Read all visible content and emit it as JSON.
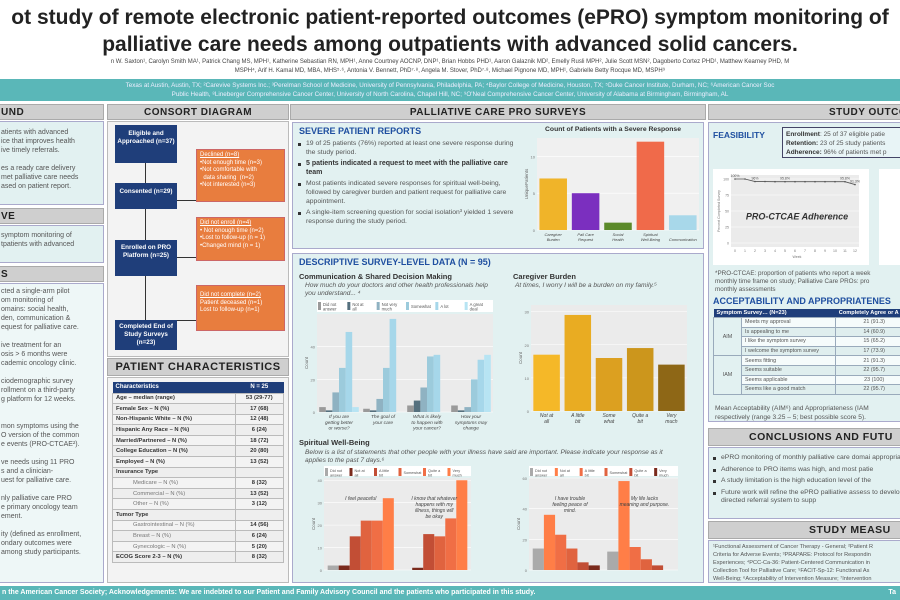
{
  "title": [
    "ot study of remote electronic patient-reported outcomes (ePRO) symptom monitoring of",
    "palliative care needs among outpatients with advanced solid cancers."
  ],
  "authors": [
    "n W. Saxton¹, Carolyn Smith MA¹, Patrick Chang MS, MPH¹, Katherine Sebastian RN, MPH¹, Anne Courtney AOCNP, DNP¹, Brian Hobbs PHD¹, Aaron Galaznik MD², Emelly Rusli MPH², Julie Scott MSN², Dagoberto Cortez PHD¹, Matthew Kearney PHD, M",
    "MSPH⁴, Arif H. Kamal MD, MBA, MHS⁵·⁶, Antonia V. Bennett, PhD⁷·⁸, Angela M. Stover, PhD⁷·⁸, Michael Pignone MD, MPH¹, Gabrielle Betty Rocque MD, MSPH⁹"
  ],
  "affiliations": [
    "Texas at Austin, Austin, TX; ²Carevive Systems Inc.; ³Perelman School of Medicine, University of Pennsylvania, Philadelphia, PA; ⁴Baylor College of Medicine, Houston, TX; ⁵Duke Cancer Institute, Durham, NC; ⁶American Cancer Soc",
    "Public Health, ⁸Lineberger Comprehensive Cancer Center, University of North Carolina, Chapel Hill, NC; ⁹O'Neal Comprehensive Cancer Center, University of Alabama at Birmingham, Birmingham, AL"
  ],
  "left": {
    "background_header": "UND",
    "background_lines": [
      "atients with advanced",
      "ice that improves health",
      "ive timely referrals.",
      "",
      "es a ready care delivery",
      "met palliative care needs",
      "ased on patient report."
    ],
    "objective_header": "VE",
    "objective_lines": [
      "symptom monitoring of",
      "tpatients with advanced"
    ],
    "methods_header": "S",
    "methods_lines": [
      "cted a single-arm pilot",
      "om monitoring of",
      "omains: social health,",
      "den, communication &",
      "equest for palliative care.",
      "",
      "ive treatment for an",
      "osis > 6 months were",
      "cademic oncology clinic.",
      "",
      "ciodemographic survey",
      "rollment on a third-party",
      "g platform for 12 weeks.",
      "",
      "",
      "mon symptoms using the",
      "O version of the common",
      "e events (PRO-CTCAE²).",
      "",
      "ve needs using 11 PRO",
      "s and a clinician-",
      "uest for palliative care.",
      "",
      "nly palliative care PRO",
      "e primary oncology team",
      "ement.",
      "",
      "ity (defined as enrollment,",
      "ondary outcomes were",
      "among study participants."
    ]
  },
  "consort": {
    "header": "CONSORT DIAGRAM",
    "nodes": [
      "Eligible and Approached (n=37)",
      "Consented (n=29)",
      "Enrolled on PRO Platform (n=25)",
      "Completed End of Study Surveys (n=23)"
    ],
    "exclusions": [
      {
        "title": "Declined (n=8)",
        "items": [
          "•Not enough time (n=3)",
          "•Not comfortable with",
          "  data sharing  (n=2)",
          "•Not interested (n=3)"
        ]
      },
      {
        "title": "Did not enroll (n=4)",
        "items": [
          "• Not enough time (n=2)",
          "•Lost to follow-up (n = 1)",
          "•Changed mind (n = 1)"
        ]
      },
      {
        "title": "Did not complete (n=2)",
        "items": [
          "Patient deceased (n=1)",
          "Lost to follow-up (n=1)"
        ]
      }
    ]
  },
  "patients": {
    "header": "PATIENT CHARACTERISTICS",
    "columns": [
      "Characteristics",
      "N = 25"
    ],
    "rows": [
      {
        "label": "Age – median (range)",
        "value": "53 (29-77)",
        "indent": false
      },
      {
        "label": "Female Sex – N (%)",
        "value": "17 (68)",
        "indent": false
      },
      {
        "label": "Non-Hispanic White – N (%)",
        "value": "12 (48)",
        "indent": false
      },
      {
        "label": "Hispanic Any Race – N (%)",
        "value": "6 (24)",
        "indent": false
      },
      {
        "label": "Married/Partnered – N (%)",
        "value": "18 (72)",
        "indent": false
      },
      {
        "label": "College Education – N (%)",
        "value": "20 (80)",
        "indent": false
      },
      {
        "label": "Employed – N (%)",
        "value": "13 (52)",
        "indent": false
      },
      {
        "label": "Insurance Type",
        "value": "",
        "indent": false
      },
      {
        "label": "Medicare – N (%)",
        "value": "8 (32)",
        "indent": true
      },
      {
        "label": "Commercial – N (%)",
        "value": "13 (52)",
        "indent": true
      },
      {
        "label": "Other – N (%)",
        "value": "3 (12)",
        "indent": true
      },
      {
        "label": "Tumor Type",
        "value": "",
        "indent": false
      },
      {
        "label": "Gastrointestinal – N (%)",
        "value": "14 (56)",
        "indent": true
      },
      {
        "label": "Breast – N (%)",
        "value": "6 (24)",
        "indent": true
      },
      {
        "label": "Gynecologic – N (%)",
        "value": "5 (20)",
        "indent": true
      },
      {
        "label": "ECOG Score 2-3 – N (%)",
        "value": "8 (32)",
        "indent": false
      }
    ]
  },
  "pro": {
    "header": "PALLIATIVE CARE PRO SURVEYS",
    "severe_title": "SEVERE PATIENT REPORTS",
    "severe_bullets": [
      "19 of 25 patients (76%) reported at least one severe response during the study period.",
      "5 patients indicated a request to meet with the palliative care team",
      "Most patients indicated severe responses for spiritual well-being, followed by caregiver burden and patient request for palliative care appointment.",
      "A single-item screening question for social isolation³ yielded 1 severe response during the study period."
    ],
    "descriptive_title": "DESCRIPTIVE SURVEY-LEVEL DATA (N = 95)",
    "comm_title": "Communication & Shared Decision Making",
    "comm_question": "How much do your doctors and other health professionals help you understand... ⁴",
    "cg_title": "Caregiver Burden",
    "cg_question": "At times, I worry I will be a burden on my family.⁵",
    "sp_title": "Spiritual Well-Being",
    "sp_question": "Below is a list of statements that other people with your illness have said are important. Please indicate your response as it applies to the past 7 days.⁶"
  },
  "chart_data": [
    {
      "type": "bar",
      "title": "Count of Patients with a Severe Response",
      "ylabel": "UniquePatients",
      "categories": [
        "Caregiver Burden",
        "Pall Care Request",
        "Social Health",
        "Spiritual Well-Being",
        "Communication"
      ],
      "values": [
        7,
        5,
        1,
        12,
        2
      ],
      "colors": [
        "#f0b429",
        "#7b2fbf",
        "#5c8a2a",
        "#f06a4a",
        "#a8d8ea"
      ],
      "ylim": [
        0,
        12.5
      ],
      "yticks": [
        0,
        5,
        10
      ]
    },
    {
      "type": "bar",
      "ylabel": "Count",
      "categories": [
        "If you are getting better or worse?",
        "The goal of your care",
        "What is likely to happen with your cancer?",
        "How your symptoms may change"
      ],
      "series": [
        {
          "name": "Did not answer",
          "values": [
            3,
            2,
            4,
            4
          ],
          "color": "#9a9a9a"
        },
        {
          "name": "Not at all",
          "values": [
            1,
            1,
            7,
            1
          ],
          "color": "#55707e"
        },
        {
          "name": "Not very much",
          "values": [
            12,
            8,
            15,
            3
          ],
          "color": "#8fb2c2"
        },
        {
          "name": "Somewhat",
          "values": [
            27,
            27,
            34,
            20
          ],
          "color": "#9ccbdc"
        },
        {
          "name": "A lot",
          "values": [
            49,
            57,
            35,
            32
          ],
          "color": "#a6d7ea"
        },
        {
          "name": "A great deal",
          "values": [
            3,
            0,
            0,
            35
          ],
          "color": "#b7e4f3"
        }
      ],
      "ylim": [
        0,
        60
      ],
      "yticks": [
        0,
        20,
        40
      ]
    },
    {
      "type": "bar",
      "ylabel": "Count",
      "categories": [
        "Not at all",
        "A little bit",
        "Some what",
        "Quite a bit",
        "Very much"
      ],
      "values": [
        17,
        29,
        16,
        19,
        14
      ],
      "colors": [
        "#f5b828",
        "#e9ac22",
        "#dca020",
        "#cc961c",
        "#8e6716"
      ],
      "ylim": [
        0,
        32
      ],
      "yticks": [
        0,
        10,
        20,
        30
      ]
    },
    {
      "type": "bar",
      "ylabel": "Count",
      "categories": [
        "I feel peaceful",
        "I know that whatever happens with my illness, things will be okay"
      ],
      "series": [
        {
          "name": "Did not answer",
          "values": [
            2,
            0
          ],
          "color": "#aaaaaa"
        },
        {
          "name": "Not at all",
          "values": [
            2,
            1
          ],
          "color": "#7a2a1c"
        },
        {
          "name": "A little bit",
          "values": [
            15,
            16
          ],
          "color": "#c24e35"
        },
        {
          "name": "Somewhat",
          "values": [
            22,
            15
          ],
          "color": "#e0633f"
        },
        {
          "name": "Quite a bit",
          "values": [
            22,
            23
          ],
          "color": "#f06e45"
        },
        {
          "name": "Very much",
          "values": [
            32,
            40
          ],
          "color": "#ff7e47"
        }
      ],
      "ylim": [
        0,
        41
      ],
      "yticks": [
        0,
        10,
        20,
        30,
        40
      ]
    },
    {
      "type": "bar",
      "ylabel": "Count",
      "categories": [
        "I have trouble feeling peace of mind.",
        "My life lacks meaning and purpose."
      ],
      "series": [
        {
          "name": "Did not answer",
          "values": [
            14,
            12
          ],
          "color": "#aaaaaa"
        },
        {
          "name": "Not at all",
          "values": [
            36,
            58
          ],
          "color": "#ff7e47"
        },
        {
          "name": "A little bit",
          "values": [
            23,
            15
          ],
          "color": "#f06e45"
        },
        {
          "name": "Somewhat",
          "values": [
            14,
            7
          ],
          "color": "#e0633f"
        },
        {
          "name": "Quite a bit",
          "values": [
            5,
            3
          ],
          "color": "#c24e35"
        },
        {
          "name": "Very much",
          "values": [
            3,
            0
          ],
          "color": "#7a2a1c"
        }
      ],
      "ylim": [
        0,
        60
      ],
      "yticks": [
        0,
        20,
        40,
        60
      ]
    },
    {
      "type": "line",
      "title": "PRO-CTCAE Adherence",
      "xlabel": "Week",
      "ylabel": "Percent Completed Survey",
      "x": [
        0,
        1,
        2,
        3,
        4,
        5,
        6,
        7,
        8,
        9,
        10,
        11,
        12
      ],
      "values": [
        100,
        100,
        96,
        96,
        95.8,
        95.8,
        95.8,
        95.8,
        95.8,
        95.8,
        95.8,
        95.8,
        91.3
      ],
      "point_labels": {
        "0": "100%",
        "2": "96%",
        "5": "95.8%",
        "11": "95.8%",
        "12": "91.3%"
      },
      "ylim": [
        0,
        100
      ],
      "yticks": [
        0,
        25,
        50,
        75,
        100
      ]
    }
  ],
  "outcomes": {
    "header": "STUDY OUTCO",
    "feasibility": "FEASIBILITY",
    "feas_lines": [
      {
        "k": "Enrollment",
        "v": ": 25 of 37 eligible patie"
      },
      {
        "k": "Retention:",
        "v": " 23 of 25 study patients"
      },
      {
        "k": "Adherence:",
        "v": " 96% of patients met p"
      }
    ],
    "note_lines": [
      "*PRO-CTCAE: proportion of patients who report a week",
      "monthly time frame on study; Palliative Care PROs: pro",
      "monthly assessments"
    ],
    "accept_title": "ACCEPTABILITY AND APPROPRIATENES",
    "accept_cols": [
      "Symptom Survey… (N=23)",
      "Completely Agree or A"
    ],
    "accept_groups": [
      {
        "name": "AIM",
        "rows": [
          [
            "Meets my approval",
            "21 (91.3)"
          ],
          [
            "Is appealing to me",
            "14 (60.9)"
          ],
          [
            "I like the symptom survey",
            "15 (65.2)"
          ],
          [
            "I welcome the symptom survey",
            "17 (73.9)"
          ]
        ]
      },
      {
        "name": "IAM",
        "rows": [
          [
            "Seems fitting",
            "21 (91.3)"
          ],
          [
            "Seems suitable",
            "22 (95.7)"
          ],
          [
            "Seems applicable",
            "23 (100)"
          ],
          [
            "Seems like a good match",
            "22 (95.7)"
          ]
        ]
      }
    ],
    "accept_note": [
      "Mean Acceptability (AIM⁶) and Appropriateness (IAM",
      "respectively (range 3.25 – 5; best possible score 5)."
    ]
  },
  "conclusions": {
    "header": "CONCLUSIONS AND FUTU",
    "bullets": [
      "ePRO monitoring of monthly palliative care domai appropriate to patients.",
      "Adherence to PRO items was high, and most patie",
      "A study limitation is the high education level of the",
      "Future work will refine the ePRO palliative assess to develop a PRO-directed referral system to supp"
    ]
  },
  "measures": {
    "header": "STUDY MEASU",
    "lines": [
      "¹Functional Assessment of Cancer Therapy - General; ²Patient R",
      "Criteria for Adverse Events; ³PRAPARE: Protocol for Respondin",
      "Experiences; ⁴PCC-Ca-36: Patient-Centered Communication in",
      "Collection Tool for Palliative Care; ⁵FACIT-Sp-12: Functional As",
      "Well-Being; ⁶Acceptability of Intervention Measure; ⁷Intervention"
    ]
  },
  "footer": {
    "text": "n the American Cancer Society; Acknowledgements: We are indebted to our Patient and Family Advisory Council and the patients who participated in this study.",
    "right": "Ta"
  }
}
